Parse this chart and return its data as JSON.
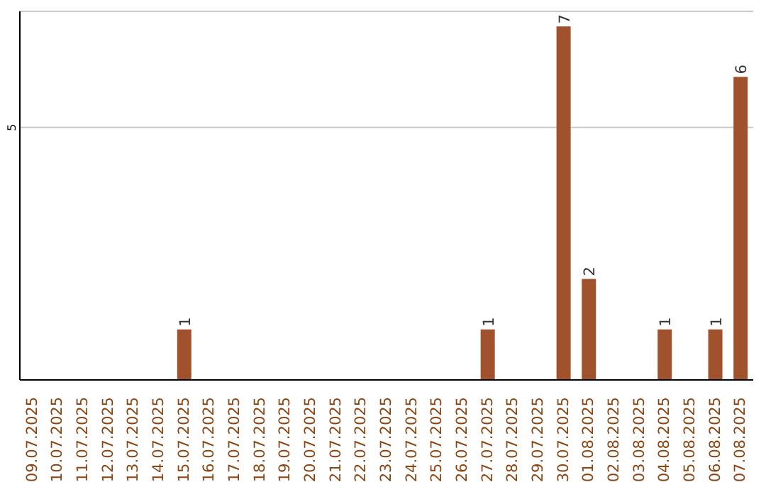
{
  "chart_data": {
    "type": "bar",
    "categories": [
      "09.07.2025",
      "10.07.2025",
      "11.07.2025",
      "12.07.2025",
      "13.07.2025",
      "14.07.2025",
      "15.07.2025",
      "16.07.2025",
      "17.07.2025",
      "18.07.2025",
      "19.07.2025",
      "20.07.2025",
      "21.07.2025",
      "22.07.2025",
      "23.07.2025",
      "24.07.2025",
      "25.07.2025",
      "26.07.2025",
      "27.07.2025",
      "28.07.2025",
      "29.07.2025",
      "30.07.2025",
      "01.08.2025",
      "02.08.2025",
      "03.08.2025",
      "04.08.2025",
      "05.08.2025",
      "06.08.2025",
      "07.08.2025"
    ],
    "values": [
      0,
      0,
      0,
      0,
      0,
      0,
      1,
      0,
      0,
      0,
      0,
      0,
      0,
      0,
      0,
      0,
      0,
      0,
      1,
      0,
      0,
      7,
      2,
      0,
      0,
      1,
      0,
      1,
      6
    ],
    "value_labels": [
      null,
      null,
      null,
      null,
      null,
      null,
      "1",
      null,
      null,
      null,
      null,
      null,
      null,
      null,
      null,
      null,
      null,
      null,
      "1",
      null,
      null,
      "7",
      "2",
      null,
      null,
      "1",
      null,
      "1",
      "6"
    ],
    "color": "#a0522d",
    "ylim": [
      0,
      7.3
    ],
    "yticks": [
      5
    ],
    "grid": "y"
  }
}
